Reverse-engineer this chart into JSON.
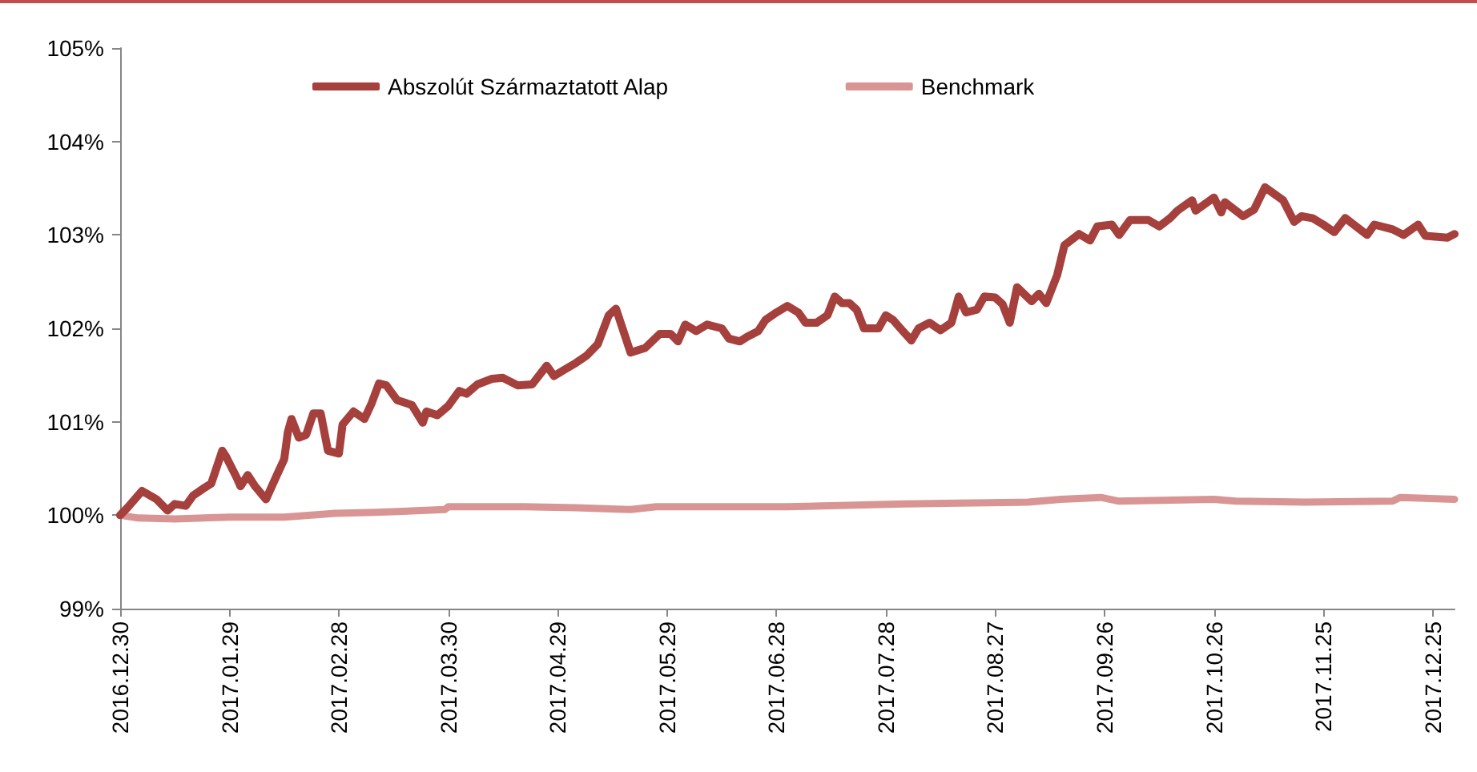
{
  "chart_data": {
    "type": "line",
    "xlim": [
      "2016-12-30",
      "2017-12-31"
    ],
    "xticks": [
      {
        "value": "2016-12-30",
        "label": "2016.12.30"
      },
      {
        "value": "2017-01-29",
        "label": "2017.01.29"
      },
      {
        "value": "2017-02-28",
        "label": "2017.02.28"
      },
      {
        "value": "2017-03-30",
        "label": "2017.03.30"
      },
      {
        "value": "2017-04-29",
        "label": "2017.04.29"
      },
      {
        "value": "2017-05-29",
        "label": "2017.05.29"
      },
      {
        "value": "2017-06-28",
        "label": "2017.06.28"
      },
      {
        "value": "2017-07-28",
        "label": "2017.07.28"
      },
      {
        "value": "2017-08-27",
        "label": "2017.08.27"
      },
      {
        "value": "2017-09-26",
        "label": "2017.09.26"
      },
      {
        "value": "2017-10-26",
        "label": "2017.10.26"
      },
      {
        "value": "2017-11-25",
        "label": "2017.11.25"
      },
      {
        "value": "2017-12-25",
        "label": "2017.12.25"
      }
    ],
    "ylim": [
      99,
      105
    ],
    "yticks": [
      {
        "value": 99,
        "label": "99%"
      },
      {
        "value": 100,
        "label": "100%"
      },
      {
        "value": 101,
        "label": "101%"
      },
      {
        "value": 102,
        "label": "102%"
      },
      {
        "value": 103,
        "label": "103%"
      },
      {
        "value": 104,
        "label": "104%"
      },
      {
        "value": 105,
        "label": "105%"
      }
    ],
    "grid": false,
    "legend": "top",
    "series": [
      {
        "name": "Abszolút Származtatott Alap",
        "color": "#a5403c",
        "x": [
          "2016-12-30",
          "2017-01-01",
          "2017-01-05",
          "2017-01-09",
          "2017-01-12",
          "2017-01-14",
          "2017-01-17",
          "2017-01-19",
          "2017-01-22",
          "2017-01-24",
          "2017-01-27",
          "2017-01-28",
          "2017-01-31",
          "2017-02-01",
          "2017-02-03",
          "2017-02-05",
          "2017-02-08",
          "2017-02-11",
          "2017-02-13",
          "2017-02-14",
          "2017-02-15",
          "2017-02-17",
          "2017-02-19",
          "2017-02-21",
          "2017-02-23",
          "2017-02-24",
          "2017-02-25",
          "2017-02-28",
          "2017-03-01",
          "2017-03-04",
          "2017-03-07",
          "2017-03-09",
          "2017-03-11",
          "2017-03-13",
          "2017-03-16",
          "2017-03-20",
          "2017-03-23",
          "2017-03-24",
          "2017-03-27",
          "2017-03-30",
          "2017-04-02",
          "2017-04-04",
          "2017-04-07",
          "2017-04-11",
          "2017-04-14",
          "2017-04-18",
          "2017-04-22",
          "2017-04-26",
          "2017-04-28",
          "2017-05-01",
          "2017-05-04",
          "2017-05-07",
          "2017-05-10",
          "2017-05-13",
          "2017-05-15",
          "2017-05-19",
          "2017-05-23",
          "2017-05-27",
          "2017-05-30",
          "2017-06-01",
          "2017-06-03",
          "2017-06-06",
          "2017-06-09",
          "2017-06-13",
          "2017-06-15",
          "2017-06-18",
          "2017-06-20",
          "2017-06-23",
          "2017-06-25",
          "2017-06-28",
          "2017-07-01",
          "2017-07-04",
          "2017-07-06",
          "2017-07-09",
          "2017-07-12",
          "2017-07-14",
          "2017-07-16",
          "2017-07-18",
          "2017-07-20",
          "2017-07-22",
          "2017-07-26",
          "2017-07-28",
          "2017-07-30",
          "2017-08-01",
          "2017-08-04",
          "2017-08-06",
          "2017-08-09",
          "2017-08-12",
          "2017-08-15",
          "2017-08-17",
          "2017-08-19",
          "2017-08-22",
          "2017-08-24",
          "2017-08-27",
          "2017-08-29",
          "2017-08-31",
          "2017-09-02",
          "2017-09-06",
          "2017-09-08",
          "2017-09-10",
          "2017-09-13",
          "2017-09-15",
          "2017-09-19",
          "2017-09-22",
          "2017-09-24",
          "2017-09-28",
          "2017-09-30",
          "2017-10-03",
          "2017-10-08",
          "2017-10-11",
          "2017-10-14",
          "2017-10-16",
          "2017-10-20",
          "2017-10-21",
          "2017-10-26",
          "2017-10-28",
          "2017-10-29",
          "2017-11-03",
          "2017-11-06",
          "2017-11-09",
          "2017-11-14",
          "2017-11-17",
          "2017-11-19",
          "2017-11-22",
          "2017-11-25",
          "2017-11-28",
          "2017-12-01",
          "2017-12-07",
          "2017-12-09",
          "2017-12-14",
          "2017-12-17",
          "2017-12-21",
          "2017-12-23",
          "2017-12-29",
          "2017-12-31"
        ],
        "values": [
          100.0,
          100.08,
          100.26,
          100.17,
          100.05,
          100.12,
          100.1,
          100.21,
          100.29,
          100.34,
          100.69,
          100.63,
          100.4,
          100.31,
          100.43,
          100.31,
          100.17,
          100.43,
          100.6,
          100.89,
          101.03,
          100.83,
          100.86,
          101.09,
          101.09,
          100.89,
          100.69,
          100.66,
          100.97,
          101.11,
          101.03,
          101.2,
          101.41,
          101.39,
          101.23,
          101.18,
          100.99,
          101.11,
          101.07,
          101.17,
          101.33,
          101.3,
          101.4,
          101.46,
          101.47,
          101.39,
          101.4,
          101.6,
          101.49,
          101.56,
          101.63,
          101.71,
          101.83,
          102.14,
          102.21,
          101.74,
          101.79,
          101.94,
          101.94,
          101.86,
          102.04,
          101.97,
          102.04,
          102.0,
          101.89,
          101.86,
          101.91,
          101.97,
          102.09,
          102.17,
          102.24,
          102.17,
          102.06,
          102.06,
          102.14,
          102.34,
          102.27,
          102.27,
          102.2,
          102.0,
          102.0,
          102.14,
          102.09,
          102.0,
          101.87,
          102.0,
          102.06,
          101.98,
          102.06,
          102.34,
          102.17,
          102.2,
          102.34,
          102.33,
          102.26,
          102.06,
          102.44,
          102.29,
          102.37,
          102.27,
          102.57,
          102.89,
          103.01,
          102.94,
          103.09,
          103.11,
          103.0,
          103.16,
          103.16,
          103.09,
          103.18,
          103.26,
          103.37,
          103.26,
          103.4,
          103.24,
          103.35,
          103.2,
          103.27,
          103.51,
          103.37,
          103.14,
          103.2,
          103.18,
          103.11,
          103.03,
          103.18,
          103.0,
          103.11,
          103.06,
          103.0,
          103.11,
          102.99,
          102.97,
          103.01
        ]
      },
      {
        "name": "Benchmark",
        "color": "#d99594",
        "x": [
          "2016-12-30",
          "2017-01-04",
          "2017-01-14",
          "2017-01-29",
          "2017-02-13",
          "2017-02-27",
          "2017-03-10",
          "2017-03-29",
          "2017-03-30",
          "2017-04-20",
          "2017-05-04",
          "2017-05-19",
          "2017-05-26",
          "2017-07-01",
          "2017-08-02",
          "2017-08-17",
          "2017-09-05",
          "2017-09-14",
          "2017-09-25",
          "2017-09-30",
          "2017-10-26",
          "2017-11-01",
          "2017-11-20",
          "2017-12-14",
          "2017-12-16",
          "2017-12-31"
        ],
        "values": [
          100.0,
          99.97,
          99.96,
          99.98,
          99.98,
          100.02,
          100.03,
          100.06,
          100.09,
          100.09,
          100.08,
          100.06,
          100.09,
          100.09,
          100.12,
          100.13,
          100.14,
          100.17,
          100.19,
          100.15,
          100.17,
          100.15,
          100.14,
          100.15,
          100.19,
          100.17
        ]
      }
    ]
  }
}
